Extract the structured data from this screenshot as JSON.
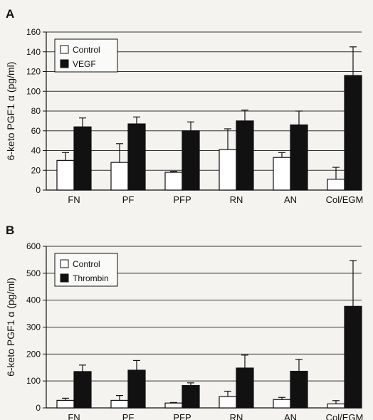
{
  "chart_data": [
    {
      "panel": "A",
      "type": "bar",
      "ylabel": "6-keto PGF1 α (pg/ml)",
      "ylim": [
        0,
        160
      ],
      "yticks": [
        "0",
        "20",
        "40",
        "60",
        "80",
        "100",
        "120",
        "140",
        "160"
      ],
      "categories": [
        "FN",
        "PF",
        "PFP",
        "RN",
        "AN",
        "Col/EGM"
      ],
      "grid": true,
      "legend_position": "top-left",
      "series": [
        {
          "name": "Control",
          "color": "#ffffff",
          "values": [
            30,
            28,
            18,
            41,
            33,
            11
          ],
          "errors": [
            8,
            19,
            1,
            21,
            5,
            12
          ]
        },
        {
          "name": "VEGF",
          "color": "#111111",
          "values": [
            64,
            67,
            60,
            70,
            66,
            116
          ],
          "errors": [
            9,
            7,
            9,
            11,
            14,
            29
          ]
        }
      ]
    },
    {
      "panel": "B",
      "type": "bar",
      "ylabel": "6-keto PGF1 α (pg/ml)",
      "ylim": [
        0,
        600
      ],
      "yticks": [
        "0",
        "100",
        "200",
        "300",
        "400",
        "500",
        "600"
      ],
      "categories": [
        "FN",
        "PF",
        "PFP",
        "RN",
        "AN",
        "Col/EGM"
      ],
      "grid": true,
      "legend_position": "top-left",
      "series": [
        {
          "name": "Control",
          "color": "#ffffff",
          "values": [
            28,
            28,
            18,
            42,
            31,
            15
          ],
          "errors": [
            8,
            18,
            2,
            20,
            8,
            12
          ]
        },
        {
          "name": "Thrombin",
          "color": "#111111",
          "values": [
            135,
            140,
            83,
            148,
            136,
            377
          ],
          "errors": [
            24,
            36,
            10,
            48,
            44,
            170
          ]
        }
      ]
    }
  ],
  "panels": {
    "a_label": "A",
    "b_label": "B"
  }
}
